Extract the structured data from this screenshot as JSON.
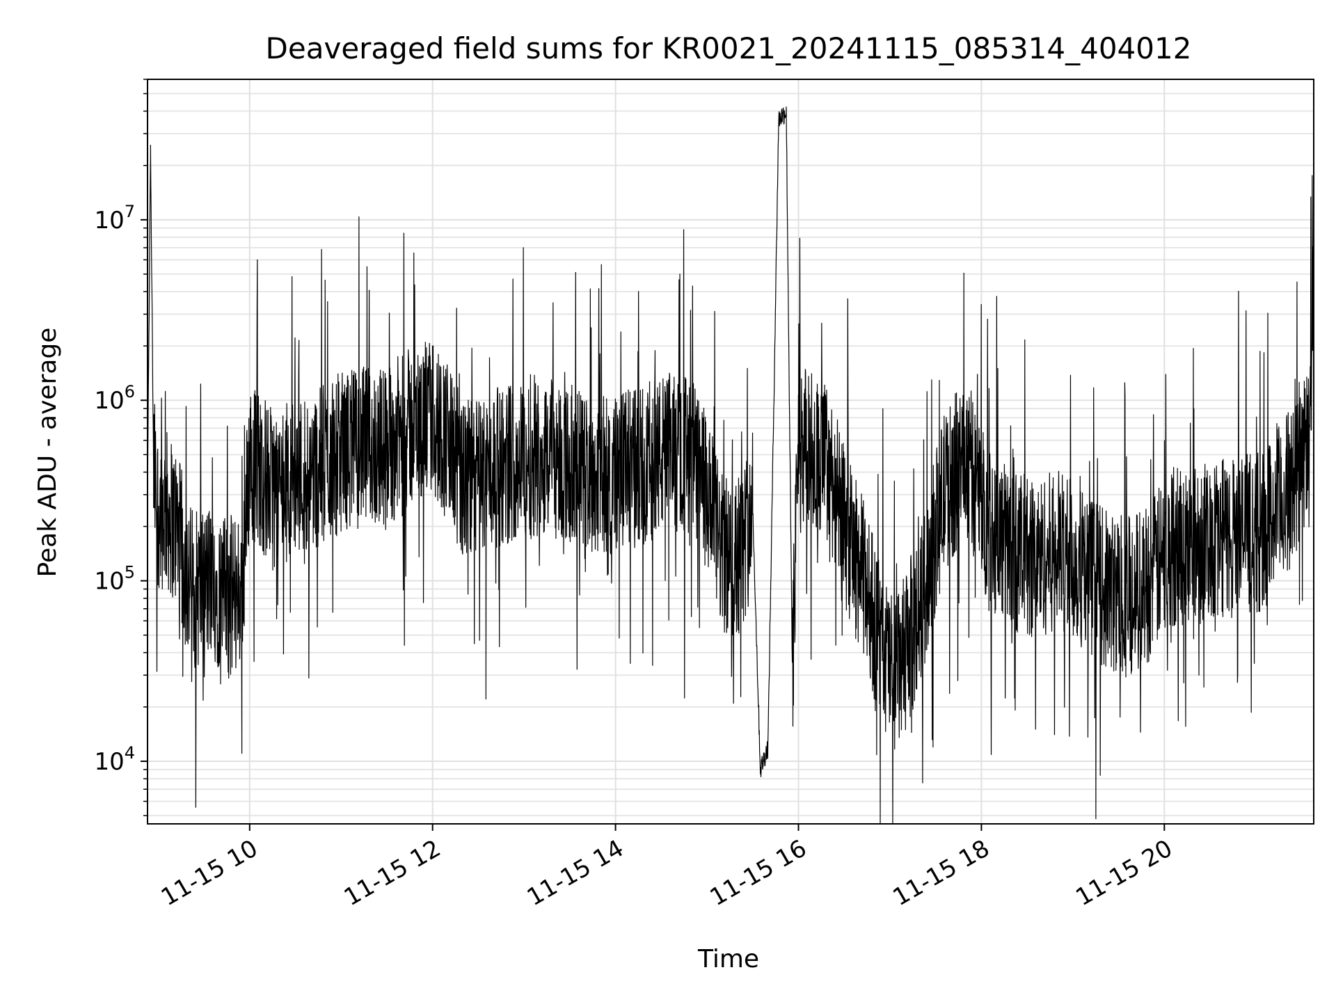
{
  "chart_data": {
    "type": "line",
    "title": "Deaveraged field sums for KR0021_20241115_085314_404012",
    "xlabel": "Time",
    "ylabel": "Peak ADU - average",
    "x_scale": "time",
    "y_scale": "log",
    "xlim": [
      "2024-11-15 08:53",
      "2024-11-15 21:38"
    ],
    "ylim": [
      4500,
      60000000
    ],
    "x_ticks": [
      "11-15 10",
      "11-15 12",
      "11-15 14",
      "11-15 16",
      "11-15 18",
      "11-15 20"
    ],
    "x_tick_times": [
      "2024-11-15 10:00",
      "2024-11-15 12:00",
      "2024-11-15 14:00",
      "2024-11-15 16:00",
      "2024-11-15 18:00",
      "2024-11-15 20:00"
    ],
    "y_ticks": [
      {
        "base": "10",
        "exp": "4",
        "value": 10000
      },
      {
        "base": "10",
        "exp": "5",
        "value": 100000
      },
      {
        "base": "10",
        "exp": "6",
        "value": 1000000
      },
      {
        "base": "10",
        "exp": "7",
        "value": 10000000
      }
    ],
    "grid": true,
    "line_color": "#000000",
    "series": [
      {
        "x": [
          "2024-11-15 08:53",
          "2024-11-15 08:55",
          "2024-11-15 08:57",
          "2024-11-15 09:00",
          "2024-11-15 09:05",
          "2024-11-15 09:12",
          "2024-11-15 09:20",
          "2024-11-15 09:25",
          "2024-11-15 09:35",
          "2024-11-15 09:45",
          "2024-11-15 09:55",
          "2024-11-15 10:00",
          "2024-11-15 10:15",
          "2024-11-15 10:30",
          "2024-11-15 10:45",
          "2024-11-15 11:00",
          "2024-11-15 11:15",
          "2024-11-15 11:30",
          "2024-11-15 11:45",
          "2024-11-15 12:00",
          "2024-11-15 12:10",
          "2024-11-15 12:20",
          "2024-11-15 12:35",
          "2024-11-15 12:50",
          "2024-11-15 13:05",
          "2024-11-15 13:20",
          "2024-11-15 13:35",
          "2024-11-15 13:50",
          "2024-11-15 14:05",
          "2024-11-15 14:20",
          "2024-11-15 14:35",
          "2024-11-15 14:50",
          "2024-11-15 15:00",
          "2024-11-15 15:10",
          "2024-11-15 15:20",
          "2024-11-15 15:30",
          "2024-11-15 15:35",
          "2024-11-15 15:40",
          "2024-11-15 15:47",
          "2024-11-15 15:52",
          "2024-11-15 15:56",
          "2024-11-15 16:00",
          "2024-11-15 16:10",
          "2024-11-15 16:20",
          "2024-11-15 16:30",
          "2024-11-15 16:45",
          "2024-11-15 16:55",
          "2024-11-15 17:05",
          "2024-11-15 17:20",
          "2024-11-15 17:35",
          "2024-11-15 17:50",
          "2024-11-15 18:05",
          "2024-11-15 18:20",
          "2024-11-15 18:35",
          "2024-11-15 18:50",
          "2024-11-15 19:05",
          "2024-11-15 19:20",
          "2024-11-15 19:35",
          "2024-11-15 19:50",
          "2024-11-15 20:05",
          "2024-11-15 20:20",
          "2024-11-15 20:35",
          "2024-11-15 20:50",
          "2024-11-15 21:05",
          "2024-11-15 21:20",
          "2024-11-15 21:30",
          "2024-11-15 21:35",
          "2024-11-15 21:38"
        ],
        "y": [
          300000,
          24000000,
          400000,
          250000,
          250000,
          200000,
          100000,
          90000,
          100000,
          80000,
          90000,
          500000,
          320000,
          380000,
          420000,
          520000,
          550000,
          560000,
          700000,
          800000,
          600000,
          350000,
          400000,
          450000,
          500000,
          480000,
          420000,
          380000,
          400000,
          450000,
          520000,
          500000,
          300000,
          140000,
          120000,
          250000,
          9000,
          12000,
          36000000,
          40000000,
          30000,
          600000,
          500000,
          450000,
          200000,
          90000,
          40000,
          30000,
          70000,
          300000,
          500000,
          200000,
          150000,
          130000,
          150000,
          120000,
          90000,
          80000,
          100000,
          150000,
          160000,
          170000,
          180000,
          190000,
          300000,
          450000,
          550000,
          4000000
        ]
      }
    ]
  }
}
